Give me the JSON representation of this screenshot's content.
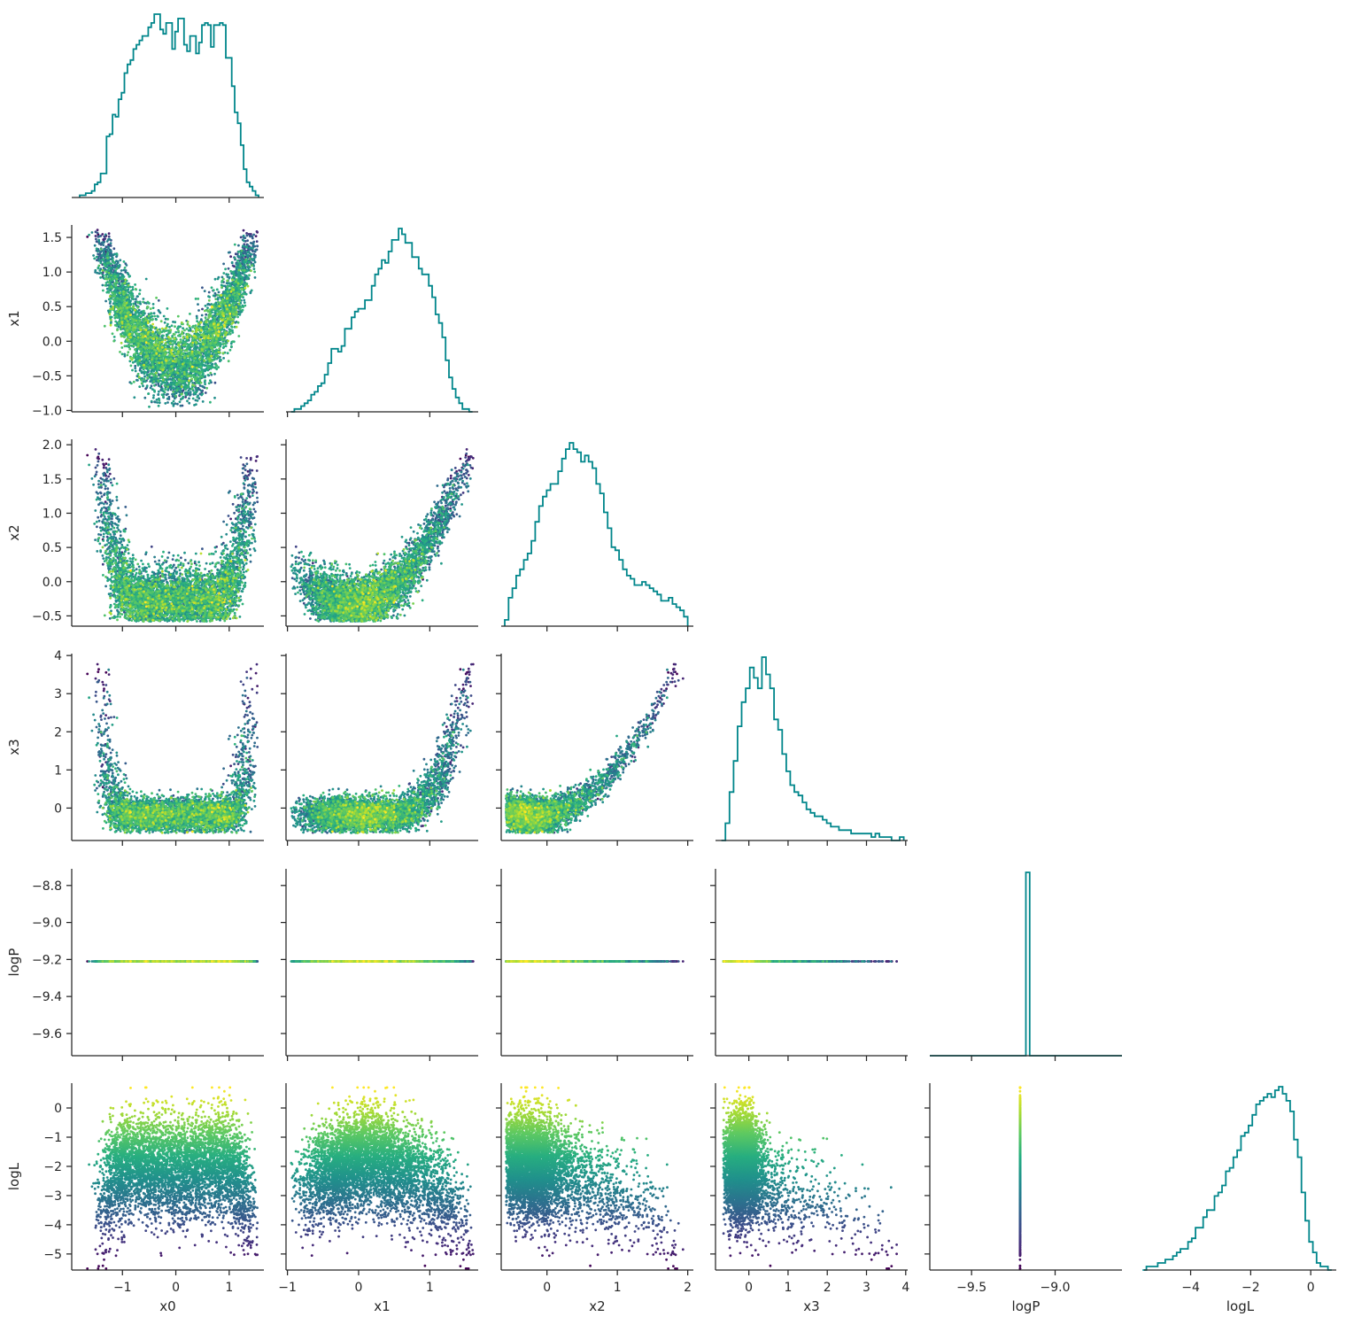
{
  "chart_data": {
    "type": "scatter",
    "title": "",
    "layout": "corner-pairplot",
    "variables": [
      "x0",
      "x1",
      "x2",
      "x3",
      "logP",
      "logL"
    ],
    "axes": {
      "x0": {
        "label": "x0",
        "lim": [
          -1.95,
          1.65
        ],
        "ticks": [
          -1,
          0,
          1
        ],
        "tick_labels": [
          "−1",
          "0",
          "1"
        ]
      },
      "x1": {
        "label": "x1",
        "lim": [
          -1.02,
          1.68
        ],
        "ticks": [
          -1.0,
          -0.5,
          0.0,
          0.5,
          1.0,
          1.5
        ],
        "tick_labels": [
          "−1.0",
          "−0.5",
          "0.0",
          "0.5",
          "1.0",
          "1.5"
        ],
        "x_ticks": [
          -1,
          0,
          1
        ],
        "x_tick_labels": [
          "−1",
          "0",
          "1"
        ]
      },
      "x2": {
        "label": "x2",
        "lim": [
          -0.65,
          2.08
        ],
        "ticks": [
          -0.5,
          0.0,
          0.5,
          1.0,
          1.5,
          2.0
        ],
        "tick_labels": [
          "−0.5",
          "0.0",
          "0.5",
          "1.0",
          "1.5",
          "2.0"
        ],
        "x_ticks": [
          0,
          1,
          2
        ],
        "x_tick_labels": [
          "0",
          "1",
          "2"
        ]
      },
      "x3": {
        "label": "x3",
        "lim": [
          -0.85,
          4.05
        ],
        "ticks": [
          0,
          1,
          2,
          3,
          4
        ],
        "tick_labels": [
          "0",
          "1",
          "2",
          "3",
          "4"
        ]
      },
      "logP": {
        "label": "logP",
        "lim": [
          -9.72,
          -8.71
        ],
        "ticks": [
          -9.6,
          -9.4,
          -9.2,
          -9.0,
          -8.8
        ],
        "tick_labels": [
          "−9.6",
          "−9.4",
          "−9.2",
          "−9.0",
          "−8.8"
        ],
        "x_lim": [
          -9.75,
          -8.6
        ],
        "x_ticks": [
          -9.5,
          -9.0
        ],
        "x_tick_labels": [
          "−9.5",
          "−9.0"
        ]
      },
      "logL": {
        "label": "logL",
        "lim": [
          -5.55,
          0.85
        ],
        "ticks": [
          -5,
          -4,
          -3,
          -2,
          -1,
          0
        ],
        "tick_labels": [
          "−5",
          "−4",
          "−3",
          "−2",
          "−1",
          "0"
        ],
        "x_ticks": [
          -4,
          -2,
          0
        ],
        "x_tick_labels": [
          "−4",
          "−2",
          "0"
        ]
      }
    },
    "logP_constant": -9.21,
    "n_samples": 5000,
    "marker_size_px": 1.4,
    "colormap": "viridis",
    "color_by": "logL",
    "diagonal": "step-histogram",
    "histogram_color": "#00868b",
    "grid": false,
    "legend": "none",
    "viridis_stops": [
      "#440154",
      "#472d7b",
      "#3b528b",
      "#2c728e",
      "#21918c",
      "#28ae80",
      "#5ec962",
      "#addc30",
      "#fde725"
    ],
    "histograms": {
      "x0": {
        "edges": [
          -1.8,
          1.55
        ],
        "counts": [
          1,
          1,
          2,
          2,
          3,
          6,
          7,
          11,
          11,
          28,
          29,
          38,
          37,
          45,
          48,
          57,
          61,
          63,
          68,
          70,
          72,
          74,
          74,
          78,
          80,
          84,
          84,
          77,
          75,
          80,
          80,
          68,
          76,
          82,
          82,
          70,
          67,
          74,
          74,
          66,
          71,
          79,
          80,
          79,
          69,
          79,
          79,
          80,
          79,
          64,
          64,
          51,
          39,
          34,
          24,
          13,
          7,
          5,
          3,
          1
        ]
      },
      "x1": {
        "edges": [
          -0.95,
          1.6
        ],
        "counts": [
          0,
          1,
          1,
          2,
          3,
          4,
          6,
          7,
          9,
          10,
          13,
          17,
          22,
          22,
          21,
          23,
          29,
          29,
          33,
          35,
          36,
          36,
          39,
          39,
          44,
          48,
          50,
          53,
          52,
          56,
          60,
          60,
          64,
          62,
          59,
          59,
          54,
          54,
          50,
          48,
          48,
          44,
          40,
          34,
          31,
          26,
          18,
          12,
          8,
          5,
          3,
          1,
          1,
          0
        ]
      },
      "x2": {
        "edges": [
          -0.6,
          2.0
        ],
        "counts": [
          2,
          9,
          12,
          16,
          18,
          21,
          23,
          27,
          33,
          38,
          41,
          43,
          45,
          45,
          49,
          53,
          56,
          58,
          56,
          55,
          52,
          54,
          52,
          50,
          45,
          42,
          36,
          31,
          25,
          24,
          21,
          18,
          16,
          15,
          13,
          13,
          14,
          13,
          12,
          11,
          10,
          8,
          8,
          9,
          7,
          6,
          5,
          3
        ]
      },
      "x3": {
        "edges": [
          -0.7,
          3.95
        ],
        "counts": [
          0,
          5,
          14,
          23,
          33,
          40,
          44,
          50,
          47,
          44,
          53,
          48,
          44,
          35,
          32,
          25,
          20,
          16,
          14,
          13,
          11,
          9,
          8,
          7,
          7,
          6,
          5,
          4,
          4,
          3,
          3,
          3,
          2,
          2,
          2,
          2,
          2,
          1,
          2,
          1,
          1,
          1,
          0,
          0,
          1
        ]
      },
      "logP": {
        "edges": [
          -9.75,
          -8.6
        ],
        "counts": [
          0,
          0,
          0,
          0,
          0,
          0,
          0,
          0,
          0,
          0,
          0,
          0,
          0,
          0,
          0,
          0,
          0,
          0,
          0,
          0,
          0,
          0,
          0,
          0,
          0,
          5000,
          0,
          0,
          0,
          0,
          0,
          0,
          0,
          0,
          0,
          0,
          0,
          0,
          0,
          0,
          0,
          0,
          0,
          0,
          0,
          0,
          0,
          0,
          0,
          0
        ]
      },
      "logL": {
        "edges": [
          -5.6,
          0.7
        ],
        "counts": [
          0,
          1,
          1,
          1,
          2,
          2,
          3,
          3,
          4,
          5,
          6,
          6,
          8,
          9,
          12,
          12,
          15,
          17,
          17,
          21,
          22,
          24,
          28,
          29,
          32,
          34,
          38,
          39,
          41,
          44,
          47,
          48,
          49,
          50,
          49,
          51,
          52,
          50,
          48,
          45,
          37,
          32,
          22,
          14,
          8,
          5,
          2,
          1,
          1,
          0
        ]
      }
    }
  }
}
